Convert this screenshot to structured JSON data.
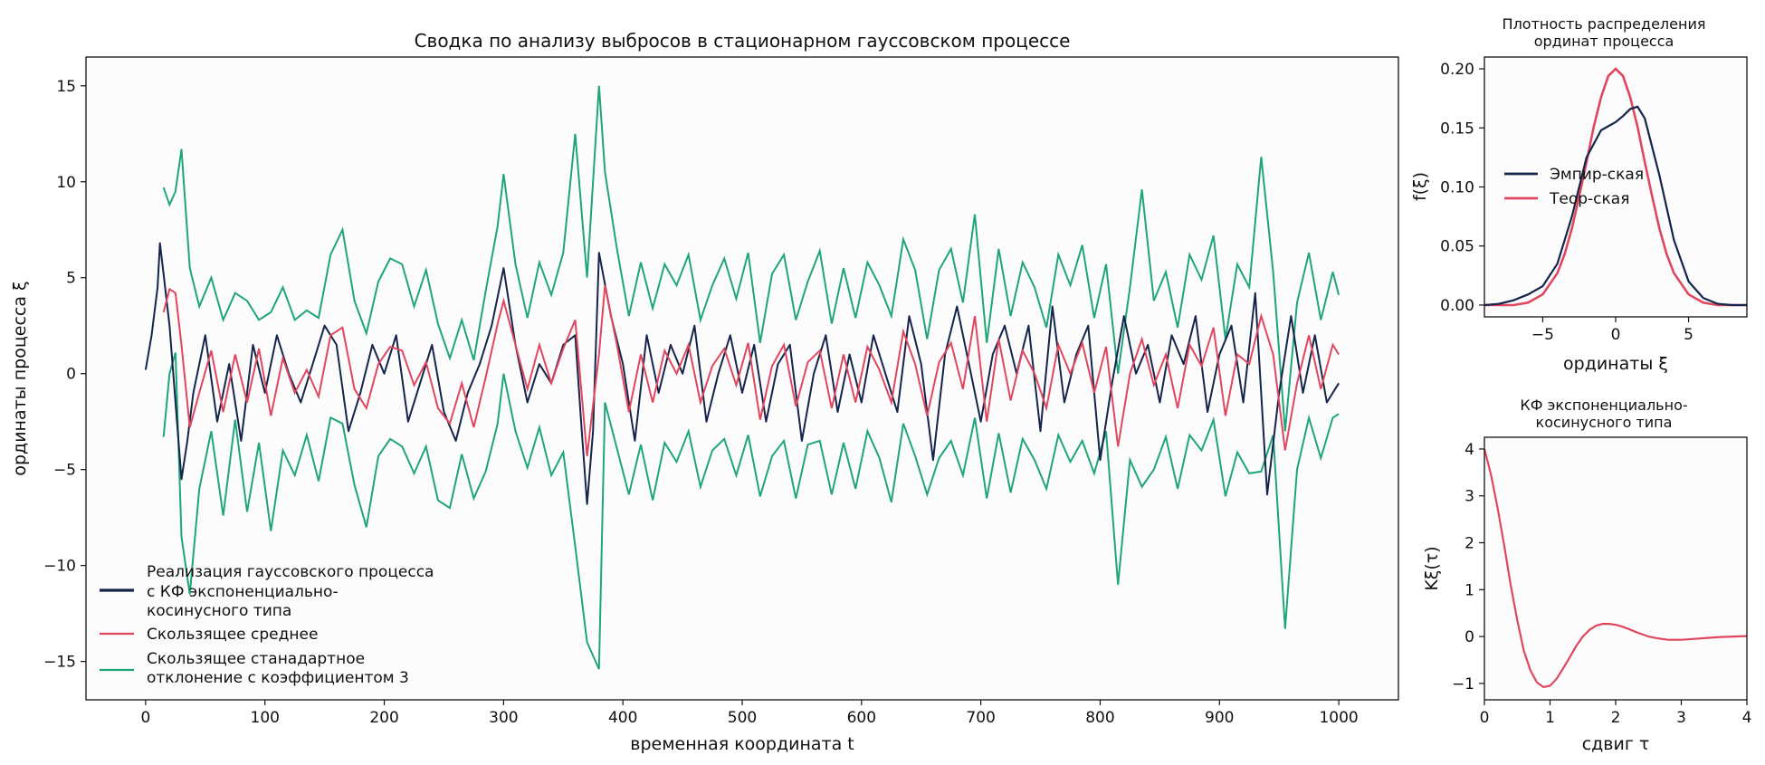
{
  "colors": {
    "realization": "#14244a",
    "moving_mean": "#e0475f",
    "moving_std": "#1fa57a",
    "plot_bg": "#fcfcfd"
  },
  "chart_data": [
    {
      "type": "line",
      "title": "Сводка по анализу выбросов в стационарном гауссовском процессе",
      "xlabel": "временная координата t",
      "ylabel": "ординаты процесса ξ",
      "xlim": [
        -50,
        1050
      ],
      "ylim": [
        -17,
        16.5
      ],
      "xticks": [
        0,
        100,
        200,
        300,
        400,
        500,
        600,
        700,
        800,
        900,
        1000
      ],
      "yticks": [
        -15,
        -10,
        -5,
        0,
        5,
        10,
        15
      ],
      "grid": false,
      "legend": "lower-left",
      "series": [
        {
          "name": "Реализация гауссовского процесса с КФ экспоненциально-косинусного типа",
          "name_lines": [
            "Реализация гауссовского процесса",
            "с КФ экспоненциально-",
            "косинусного типа"
          ],
          "x": [
            0,
            5,
            10,
            12,
            15,
            20,
            25,
            30,
            35,
            40,
            50,
            60,
            70,
            80,
            90,
            100,
            110,
            120,
            130,
            140,
            150,
            160,
            170,
            180,
            190,
            200,
            210,
            220,
            230,
            240,
            250,
            260,
            270,
            280,
            290,
            300,
            310,
            320,
            330,
            340,
            350,
            360,
            365,
            370,
            375,
            380,
            390,
            400,
            410,
            420,
            430,
            440,
            450,
            460,
            470,
            480,
            490,
            500,
            510,
            520,
            530,
            540,
            550,
            560,
            570,
            580,
            590,
            600,
            610,
            620,
            630,
            640,
            650,
            660,
            670,
            680,
            690,
            700,
            710,
            720,
            730,
            740,
            750,
            760,
            770,
            780,
            790,
            800,
            810,
            820,
            830,
            840,
            850,
            860,
            870,
            880,
            890,
            900,
            910,
            920,
            930,
            940,
            950,
            960,
            970,
            980,
            990,
            1000
          ],
          "y": [
            0.2,
            2.0,
            4.5,
            6.8,
            5.2,
            2.5,
            -1.5,
            -5.5,
            -3.5,
            -1.0,
            2.0,
            -2.5,
            0.5,
            -3.5,
            1.5,
            -1.0,
            2.0,
            0.0,
            -1.5,
            0.5,
            2.5,
            1.5,
            -3.0,
            -1.0,
            1.5,
            0.0,
            2.0,
            -2.5,
            -0.5,
            1.5,
            -2.0,
            -3.5,
            -1.0,
            0.5,
            2.5,
            5.5,
            1.5,
            -1.5,
            0.5,
            -0.5,
            1.5,
            2.0,
            -2.5,
            -6.8,
            -3.0,
            6.3,
            3.0,
            0.5,
            -3.5,
            2.0,
            -1.0,
            1.5,
            0.0,
            2.5,
            -2.5,
            0.0,
            2.0,
            -1.0,
            1.5,
            -2.5,
            0.5,
            1.5,
            -3.5,
            0.0,
            2.0,
            -2.0,
            1.0,
            -1.5,
            2.0,
            0.0,
            -2.0,
            3.0,
            0.5,
            -4.5,
            1.0,
            3.5,
            0.5,
            -2.5,
            1.0,
            2.5,
            0.0,
            2.5,
            -3.0,
            3.5,
            -1.5,
            1.0,
            2.5,
            -4.5,
            -0.5,
            3.0,
            0.0,
            1.5,
            -1.5,
            2.0,
            0.5,
            3.0,
            -2.0,
            1.0,
            2.5,
            -1.5,
            4.2,
            -6.3,
            -1.0,
            3.0,
            -1.0,
            2.0,
            -1.5,
            -0.5
          ]
        },
        {
          "name": "Скользящее среднее",
          "x": [
            15,
            20,
            25,
            30,
            37,
            45,
            55,
            65,
            75,
            85,
            95,
            105,
            115,
            125,
            135,
            145,
            155,
            165,
            175,
            185,
            195,
            205,
            215,
            225,
            235,
            245,
            255,
            265,
            275,
            285,
            295,
            300,
            310,
            320,
            330,
            340,
            350,
            360,
            370,
            380,
            385,
            395,
            405,
            415,
            425,
            435,
            445,
            455,
            465,
            475,
            485,
            495,
            505,
            515,
            525,
            535,
            545,
            555,
            565,
            575,
            585,
            595,
            605,
            615,
            625,
            635,
            645,
            655,
            665,
            675,
            685,
            695,
            705,
            715,
            725,
            735,
            745,
            755,
            765,
            775,
            785,
            795,
            805,
            815,
            825,
            835,
            845,
            855,
            865,
            875,
            885,
            895,
            905,
            915,
            925,
            935,
            945,
            955,
            965,
            975,
            985,
            995,
            1000
          ],
          "y": [
            3.2,
            4.4,
            4.2,
            1.5,
            -2.8,
            -1.0,
            1.2,
            -2.0,
            1.0,
            -1.5,
            1.3,
            -2.2,
            0.8,
            -1.0,
            0.2,
            -1.2,
            2.0,
            2.4,
            -0.8,
            -1.8,
            0.5,
            1.4,
            1.2,
            -0.6,
            0.6,
            -1.8,
            -2.6,
            -0.5,
            -2.8,
            -0.2,
            2.6,
            3.8,
            1.5,
            -0.8,
            1.5,
            -0.5,
            1.3,
            2.8,
            -4.3,
            1.0,
            4.6,
            1.5,
            -2.0,
            1.0,
            -1.5,
            1.2,
            0.0,
            1.5,
            -1.5,
            0.4,
            1.3,
            -0.6,
            1.6,
            -2.4,
            0.4,
            1.5,
            -1.7,
            0.6,
            1.2,
            -1.8,
            1.0,
            -1.5,
            1.4,
            0.2,
            -1.5,
            2.2,
            0.5,
            -2.2,
            0.6,
            1.6,
            -0.8,
            3.0,
            -2.5,
            1.8,
            -1.4,
            1.2,
            0.0,
            -1.8,
            1.5,
            0.0,
            1.6,
            -1.0,
            1.4,
            -3.8,
            0.0,
            1.8,
            -0.6,
            1.0,
            -1.8,
            1.5,
            0.4,
            2.4,
            -2.2,
            1.0,
            0.5,
            3.0,
            1.0,
            -4.0,
            -0.5,
            2.0,
            -0.8,
            1.5,
            1.0
          ]
        },
        {
          "name": "Скользящее стандартное отклонение с коэффициентом 3",
          "name_lines": [
            "Скользящее станадартное",
            "отклонение с коэффициентом 3"
          ],
          "x": [
            15,
            20,
            25,
            30,
            37,
            45,
            55,
            65,
            75,
            85,
            95,
            105,
            115,
            125,
            135,
            145,
            155,
            165,
            175,
            185,
            195,
            205,
            215,
            225,
            235,
            245,
            255,
            265,
            275,
            285,
            295,
            300,
            310,
            320,
            330,
            340,
            350,
            360,
            370,
            380,
            385,
            395,
            405,
            415,
            425,
            435,
            445,
            455,
            465,
            475,
            485,
            495,
            505,
            515,
            525,
            535,
            545,
            555,
            565,
            575,
            585,
            595,
            605,
            615,
            625,
            635,
            645,
            655,
            665,
            675,
            685,
            695,
            705,
            715,
            725,
            735,
            745,
            755,
            765,
            775,
            785,
            795,
            805,
            815,
            825,
            835,
            845,
            855,
            865,
            875,
            885,
            895,
            905,
            915,
            925,
            935,
            945,
            955,
            965,
            975,
            985,
            995,
            1000
          ],
          "upper": [
            9.7,
            8.8,
            9.5,
            11.7,
            5.5,
            3.5,
            5.0,
            2.8,
            4.2,
            3.8,
            2.8,
            3.2,
            4.5,
            2.8,
            3.3,
            2.9,
            6.2,
            7.5,
            3.8,
            2.1,
            4.8,
            6.0,
            5.7,
            3.5,
            5.4,
            2.6,
            0.8,
            2.8,
            0.7,
            4.3,
            7.7,
            10.4,
            5.7,
            2.9,
            5.8,
            4.1,
            6.3,
            12.5,
            5.0,
            15.0,
            10.5,
            6.5,
            3.0,
            5.8,
            3.4,
            5.7,
            4.6,
            6.2,
            2.8,
            4.6,
            6.0,
            3.9,
            6.3,
            1.6,
            5.2,
            6.2,
            2.8,
            4.8,
            6.4,
            2.6,
            5.5,
            2.9,
            5.8,
            4.6,
            3.0,
            7.0,
            5.4,
            1.8,
            5.4,
            6.5,
            3.7,
            8.3,
            1.6,
            6.5,
            3.0,
            5.8,
            4.5,
            2.4,
            6.2,
            4.6,
            6.7,
            2.9,
            5.7,
            0.0,
            4.5,
            9.6,
            3.8,
            5.3,
            2.4,
            6.2,
            4.9,
            7.2,
            1.8,
            5.7,
            4.5,
            11.3,
            5.3,
            -3.0,
            3.7,
            6.3,
            2.8,
            5.3,
            4.1
          ],
          "lower": [
            -3.3,
            0.0,
            1.1,
            -8.5,
            -11.5,
            -6.0,
            -3.0,
            -7.4,
            -2.4,
            -7.2,
            -3.6,
            -8.2,
            -4.0,
            -5.3,
            -3.2,
            -5.6,
            -2.3,
            -2.6,
            -5.8,
            -8.0,
            -4.3,
            -3.4,
            -3.8,
            -5.2,
            -3.8,
            -6.6,
            -7.0,
            -4.2,
            -6.5,
            -5.1,
            -2.6,
            0.0,
            -3.0,
            -4.9,
            -2.8,
            -5.3,
            -4.1,
            -9.0,
            -14.0,
            -15.4,
            -1.5,
            -3.9,
            -6.3,
            -3.7,
            -6.6,
            -3.6,
            -4.6,
            -3.0,
            -5.9,
            -4.0,
            -3.4,
            -5.3,
            -3.2,
            -6.4,
            -4.3,
            -3.5,
            -6.5,
            -3.7,
            -3.5,
            -6.3,
            -3.6,
            -6.0,
            -3.0,
            -4.4,
            -6.7,
            -2.6,
            -4.3,
            -6.3,
            -4.4,
            -3.5,
            -5.3,
            -2.3,
            -6.5,
            -3.1,
            -6.2,
            -3.4,
            -4.5,
            -6.0,
            -3.2,
            -4.6,
            -3.5,
            -5.2,
            -3.0,
            -11.0,
            -4.5,
            -5.9,
            -5.0,
            -3.3,
            -6.0,
            -3.2,
            -4.0,
            -2.4,
            -6.4,
            -4.1,
            -5.2,
            -5.1,
            -3.2,
            -13.3,
            -5.0,
            -2.3,
            -4.4,
            -2.3,
            -2.1
          ]
        }
      ]
    },
    {
      "type": "line",
      "title": "Плотность распределения ординат процесса",
      "title_lines": [
        "Плотность распределения",
        "ординат процесса"
      ],
      "xlabel": "ординаты ξ",
      "ylabel": "f(ξ)",
      "xlim": [
        -9,
        9
      ],
      "ylim": [
        -0.01,
        0.21
      ],
      "xticks": [
        -5,
        0,
        5
      ],
      "yticks": [
        0.0,
        0.05,
        0.1,
        0.15,
        0.2
      ],
      "ytick_labels": [
        "0.00",
        "0.05",
        "0.10",
        "0.15",
        "0.20"
      ],
      "legend": "center-left",
      "series": [
        {
          "name": "Эмпир-ская",
          "x": [
            -9,
            -8,
            -7,
            -6,
            -5,
            -4,
            -3,
            -2,
            -1,
            0,
            0.5,
            1,
            1.5,
            2,
            3,
            4,
            5,
            6,
            7,
            8,
            9
          ],
          "y": [
            0.0,
            0.001,
            0.004,
            0.009,
            0.016,
            0.035,
            0.075,
            0.125,
            0.148,
            0.155,
            0.16,
            0.166,
            0.168,
            0.158,
            0.11,
            0.055,
            0.02,
            0.006,
            0.001,
            0.0,
            0.0
          ]
        },
        {
          "name": "Теор-ская",
          "x": [
            -9,
            -8,
            -7,
            -6,
            -5,
            -4,
            -3.5,
            -3,
            -2.5,
            -2,
            -1.5,
            -1,
            -0.5,
            0,
            0.5,
            1,
            1.5,
            2,
            2.5,
            3,
            3.5,
            4,
            5,
            6,
            7,
            8,
            9
          ],
          "y": [
            0.0,
            0.0,
            0.0,
            0.002,
            0.009,
            0.027,
            0.043,
            0.065,
            0.092,
            0.121,
            0.151,
            0.176,
            0.194,
            0.2,
            0.194,
            0.176,
            0.151,
            0.121,
            0.092,
            0.065,
            0.043,
            0.027,
            0.009,
            0.002,
            0.0,
            0.0,
            0.0
          ]
        }
      ]
    },
    {
      "type": "line",
      "title": "КФ экспоненциально-косинусного типа",
      "title_lines": [
        "КФ экспоненциально-",
        "косинусного типа"
      ],
      "xlabel": "сдвиг τ",
      "ylabel": "Kξ(τ)",
      "xlim": [
        0,
        4
      ],
      "ylim": [
        -1.35,
        4.25
      ],
      "xticks": [
        0,
        1,
        2,
        3,
        4
      ],
      "yticks": [
        -1,
        0,
        1,
        2,
        3,
        4
      ],
      "series": [
        {
          "name": "",
          "x": [
            0,
            0.1,
            0.2,
            0.3,
            0.4,
            0.5,
            0.6,
            0.7,
            0.8,
            0.9,
            1.0,
            1.1,
            1.2,
            1.3,
            1.4,
            1.5,
            1.6,
            1.7,
            1.8,
            1.9,
            2.0,
            2.1,
            2.2,
            2.3,
            2.4,
            2.5,
            2.6,
            2.7,
            2.8,
            2.9,
            3.0,
            3.1,
            3.2,
            3.4,
            3.6,
            3.8,
            4.0
          ],
          "y": [
            4.0,
            3.45,
            2.75,
            1.95,
            1.1,
            0.35,
            -0.3,
            -0.72,
            -0.98,
            -1.08,
            -1.05,
            -0.9,
            -0.68,
            -0.44,
            -0.2,
            0.0,
            0.14,
            0.23,
            0.27,
            0.27,
            0.25,
            0.21,
            0.16,
            0.1,
            0.05,
            0.0,
            -0.03,
            -0.05,
            -0.07,
            -0.07,
            -0.07,
            -0.06,
            -0.05,
            -0.03,
            -0.01,
            0.0,
            0.01
          ]
        }
      ]
    }
  ]
}
